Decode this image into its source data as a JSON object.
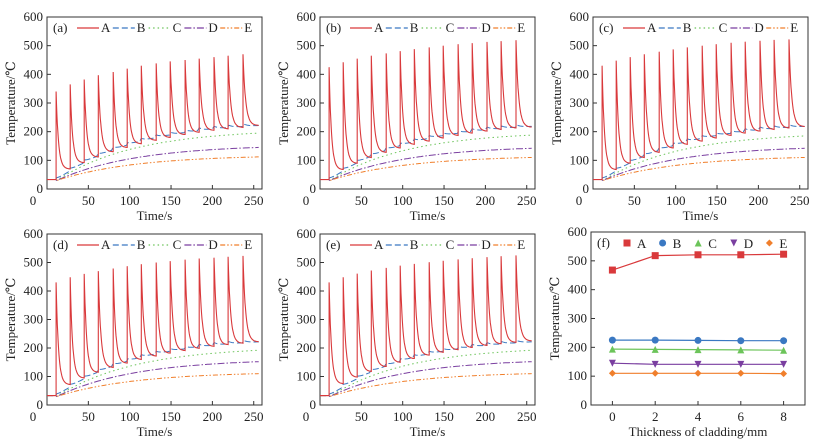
{
  "chart_data": [
    {
      "type": "line",
      "panel_label": "(a)",
      "xlabel": "Time/s",
      "ylabel": "Temperature/℃",
      "xlim": [
        0,
        260
      ],
      "ylim": [
        0,
        600
      ],
      "xticks": [
        "0",
        "50",
        "100",
        "150",
        "200",
        "250"
      ],
      "yticks": [
        "100",
        "200",
        "300",
        "400",
        "500",
        "600"
      ],
      "legend": [
        "A",
        "B",
        "C",
        "D",
        "E"
      ],
      "legend_placement": "top",
      "peak_times": [
        11,
        28,
        45,
        62,
        80,
        97,
        114,
        132,
        149,
        167,
        184,
        202,
        219,
        237
      ],
      "series": [
        {
          "name": "A",
          "peaks": [
            340,
            365,
            382,
            397,
            408,
            420,
            430,
            438,
            445,
            450,
            455,
            460,
            465,
            470
          ],
          "troughs": [
            70,
            92,
            112,
            130,
            145,
            158,
            170,
            180,
            190,
            198,
            205,
            210,
            215,
            222
          ],
          "end": 222
        },
        {
          "name": "B",
          "start": 35,
          "end": 225
        },
        {
          "name": "C",
          "start": 30,
          "end": 195
        },
        {
          "name": "D",
          "start": 30,
          "end": 145
        },
        {
          "name": "E",
          "start": 30,
          "end": 112
        }
      ]
    },
    {
      "type": "line",
      "panel_label": "(b)",
      "xlabel": "Time/s",
      "ylabel": "Temperature/℃",
      "xlim": [
        0,
        260
      ],
      "ylim": [
        0,
        600
      ],
      "xticks": [
        "0",
        "50",
        "100",
        "150",
        "200",
        "250"
      ],
      "yticks": [
        "100",
        "200",
        "300",
        "400",
        "500",
        "600"
      ],
      "legend": [
        "A",
        "B",
        "C",
        "D",
        "E"
      ],
      "legend_placement": "top",
      "peak_times": [
        11,
        28,
        45,
        62,
        80,
        97,
        114,
        132,
        149,
        167,
        184,
        202,
        219,
        237
      ],
      "series": [
        {
          "name": "A",
          "peaks": [
            425,
            442,
            455,
            465,
            473,
            481,
            488,
            494,
            500,
            505,
            509,
            513,
            516,
            519
          ],
          "troughs": [
            68,
            90,
            110,
            128,
            143,
            156,
            167,
            178,
            187,
            195,
            202,
            208,
            213,
            218
          ],
          "end": 216
        },
        {
          "name": "B",
          "start": 35,
          "end": 222
        },
        {
          "name": "C",
          "start": 30,
          "end": 188
        },
        {
          "name": "D",
          "start": 30,
          "end": 142
        },
        {
          "name": "E",
          "start": 30,
          "end": 110
        }
      ]
    },
    {
      "type": "line",
      "panel_label": "(c)",
      "xlabel": "Time/s",
      "ylabel": "Temperature/℃",
      "xlim": [
        0,
        260
      ],
      "ylim": [
        0,
        600
      ],
      "xticks": [
        "0",
        "50",
        "100",
        "150",
        "200",
        "250"
      ],
      "yticks": [
        "100",
        "200",
        "300",
        "400",
        "500",
        "600"
      ],
      "legend": [
        "A",
        "B",
        "C",
        "D",
        "E"
      ],
      "legend_placement": "top",
      "peak_times": [
        11,
        28,
        45,
        62,
        80,
        97,
        114,
        132,
        149,
        167,
        184,
        202,
        219,
        237
      ],
      "series": [
        {
          "name": "A",
          "peaks": [
            430,
            448,
            460,
            470,
            479,
            487,
            494,
            500,
            505,
            510,
            514,
            517,
            520,
            522
          ],
          "troughs": [
            68,
            90,
            110,
            128,
            143,
            156,
            167,
            178,
            187,
            195,
            202,
            208,
            213,
            218
          ],
          "end": 218
        },
        {
          "name": "B",
          "start": 35,
          "end": 222
        },
        {
          "name": "C",
          "start": 30,
          "end": 185
        },
        {
          "name": "D",
          "start": 30,
          "end": 142
        },
        {
          "name": "E",
          "start": 30,
          "end": 110
        }
      ]
    },
    {
      "type": "line",
      "panel_label": "(d)",
      "xlabel": "Time/s",
      "ylabel": "Temperature/℃",
      "xlim": [
        0,
        260
      ],
      "ylim": [
        0,
        600
      ],
      "xticks": [
        "0",
        "50",
        "100",
        "150",
        "200",
        "250"
      ],
      "yticks": [
        "100",
        "200",
        "300",
        "400",
        "500",
        "600"
      ],
      "legend": [
        "A",
        "B",
        "C",
        "D",
        "E"
      ],
      "legend_placement": "top",
      "peak_times": [
        11,
        28,
        45,
        62,
        80,
        97,
        114,
        132,
        149,
        167,
        184,
        202,
        219,
        237
      ],
      "series": [
        {
          "name": "A",
          "peaks": [
            430,
            448,
            460,
            470,
            479,
            487,
            494,
            500,
            505,
            510,
            514,
            517,
            520,
            523
          ],
          "troughs": [
            72,
            95,
            115,
            132,
            147,
            160,
            172,
            182,
            191,
            199,
            206,
            212,
            217,
            222
          ],
          "end": 222
        },
        {
          "name": "B",
          "start": 35,
          "end": 225
        },
        {
          "name": "C",
          "start": 30,
          "end": 192
        },
        {
          "name": "D",
          "start": 30,
          "end": 152
        },
        {
          "name": "E",
          "start": 30,
          "end": 110
        }
      ]
    },
    {
      "type": "line",
      "panel_label": "(e)",
      "xlabel": "Time/s",
      "ylabel": "Temperature/℃",
      "xlim": [
        0,
        260
      ],
      "ylim": [
        0,
        600
      ],
      "xticks": [
        "0",
        "50",
        "100",
        "150",
        "200",
        "250"
      ],
      "yticks": [
        "100",
        "200",
        "300",
        "400",
        "500",
        "600"
      ],
      "legend": [
        "A",
        "B",
        "C",
        "D",
        "E"
      ],
      "legend_placement": "top",
      "peak_times": [
        11,
        28,
        45,
        62,
        80,
        97,
        114,
        132,
        149,
        167,
        184,
        202,
        219,
        237
      ],
      "series": [
        {
          "name": "A",
          "peaks": [
            430,
            448,
            461,
            472,
            481,
            489,
            495,
            501,
            506,
            511,
            515,
            519,
            522,
            525
          ],
          "troughs": [
            75,
            98,
            118,
            135,
            150,
            163,
            175,
            185,
            194,
            202,
            209,
            215,
            220,
            225
          ],
          "end": 225
        },
        {
          "name": "B",
          "start": 35,
          "end": 225
        },
        {
          "name": "C",
          "start": 30,
          "end": 192
        },
        {
          "name": "D",
          "start": 30,
          "end": 152
        },
        {
          "name": "E",
          "start": 30,
          "end": 110
        }
      ]
    },
    {
      "type": "line",
      "panel_label": "(f)",
      "xlabel": "Thickness of cladding/mm",
      "ylabel": "Temperature/℃",
      "xlim": [
        -1,
        9
      ],
      "ylim": [
        0,
        600
      ],
      "xticks": [
        "0",
        "2",
        "4",
        "6",
        "8"
      ],
      "yticks": [
        "0",
        "100",
        "200",
        "300",
        "400",
        "500",
        "600"
      ],
      "legend": [
        "A",
        "B",
        "C",
        "D",
        "E"
      ],
      "legend_placement": "top",
      "x": [
        0,
        2,
        4,
        6,
        8
      ],
      "series": [
        {
          "name": "A",
          "marker": "square",
          "values": [
            468,
            518,
            521,
            521,
            523
          ]
        },
        {
          "name": "B",
          "marker": "circle",
          "values": [
            225,
            225,
            224,
            223,
            223
          ]
        },
        {
          "name": "C",
          "marker": "triangle-up",
          "values": [
            194,
            193,
            192,
            191,
            190
          ]
        },
        {
          "name": "D",
          "marker": "triangle-down",
          "values": [
            145,
            141,
            141,
            141,
            141
          ]
        },
        {
          "name": "E",
          "marker": "diamond",
          "values": [
            110,
            110,
            110,
            110,
            109
          ]
        }
      ]
    }
  ],
  "colors": {
    "A": "#d9393b",
    "B": "#3a78c2",
    "C": "#6cc45a",
    "D": "#7a3fa0",
    "E": "#f07f2c",
    "axis": "#333333"
  }
}
